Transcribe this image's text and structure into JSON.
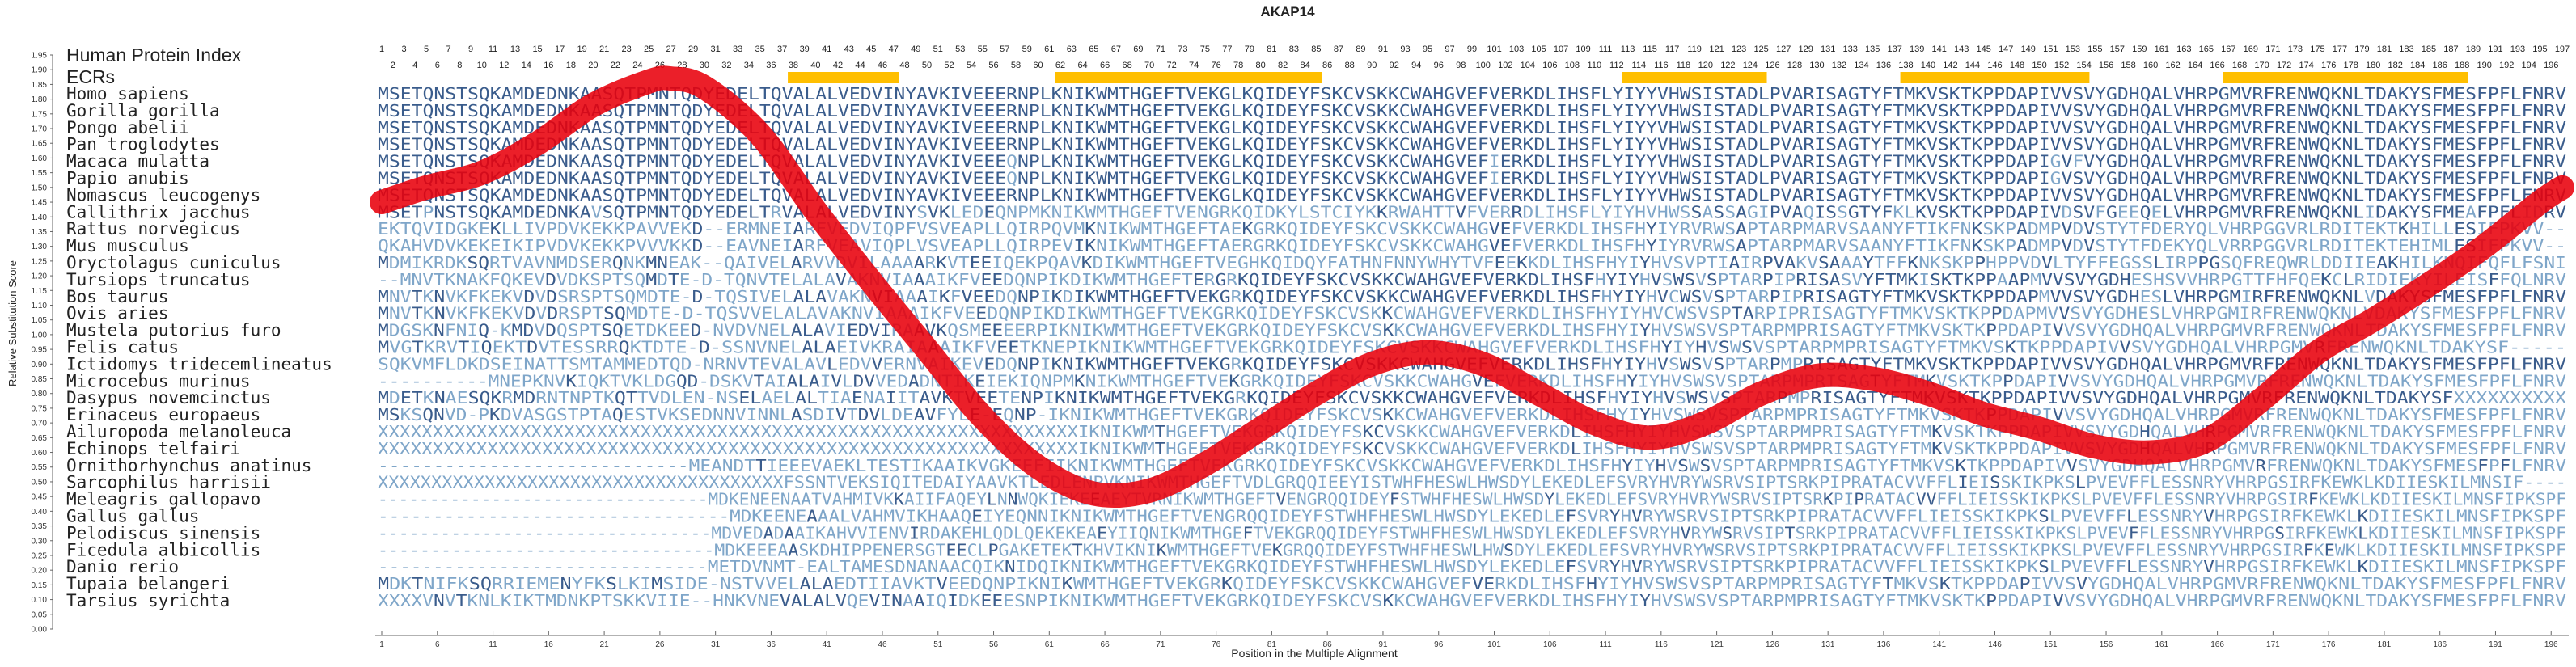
{
  "chart_data": {
    "type": "line",
    "title": "AKAP14",
    "xlabel": "Position in the Multiple Alignment",
    "ylabel": "Relative Substitution Score",
    "xlim": [
      1,
      197
    ],
    "ylim": [
      0,
      1.95
    ],
    "grid": false,
    "row_titles": [
      "Human Protein Index",
      "ECRs"
    ],
    "ecr_ranges": [
      [
        38,
        47
      ],
      [
        62,
        85
      ],
      [
        113,
        125
      ],
      [
        138,
        154
      ],
      [
        167,
        188
      ]
    ],
    "species": [
      "Homo sapiens",
      "Gorilla gorilla",
      "Pongo abelii",
      "Pan troglodytes",
      "Macaca mulatta",
      "Papio anubis",
      "Nomascus leucogenys",
      "Callithrix jacchus",
      "Rattus norvegicus",
      "Mus musculus",
      "Oryctolagus cuniculus",
      "Tursiops truncatus",
      "Bos taurus",
      "Ovis aries",
      "Mustela putorius furo",
      "Felis catus",
      "Ictidomys tridecemlineatus",
      "Microcebus murinus",
      "Dasypus novemcinctus",
      "Erinaceus europaeus",
      "Ailuropoda melanoleuca",
      "Echinops telfairi",
      "Ornithorhynchus anatinus",
      "Sarcophilus harrisii",
      "Meleagris gallopavo",
      "Gallus gallus",
      "Pelodiscus sinensis",
      "Ficedula albicollis",
      "Danio rerio",
      "Tupaia belangeri",
      "Tarsius syrichta"
    ],
    "sequences": [
      "MSETQNSTSQKAMDEDNKAASQTPMNTQDYEDELTQVALALVEDVINYAVKIVEEERNPLKNIKWMTHGEFTVEKGLKQIDEYFSKCVSKKCWAHGVEFVERKDLIHSFLYIYYVHWSISTADLPVARISAGTYFTMKVSKTKPPDAPIVVSVYGDHQALVHRPGMVRFRENWQKNLTDAKYSFMESFPFLFNRV",
      "MSETQNSTSQKAMDEDNKAASQTPMNTQDYEDELTQVALALVEDVINYAVKIVEEERNPLKNIKWMTHGEFTVEKGLKQIDEYFSKCVSKKCWAHGVEFVERKDLIHSFLYIYYVHWSISTADLPVARISAGTYFTMKVSKTKPPDAPIVVSVYGDHQALVHRPGMVRFRENWQKNLTDAKYSFMESFPFLFNRV",
      "MSETQNSTSQKAMDEDNKAASQTPMNTQDYEDELTQVALALVEDVINYAVKIVEEERNPLKNIKWMTHGEFTVEKGLKQIDEYFSKCVSKKCWAHGVEFVERKDLIHSFLYIYYVHWSISTADLPVARISAGTYFTMKVSKTKPPDAPIVVSVYGDHQALVHRPGMVRFRENWQKNLTDAKYSFMESFPFLFNRV",
      "MSETQNSTSQKAMDEDNKAASQTPMNTQDYEDELTQVALALVEDVINYAVKIVEEERNPLKNIKWMTHGEFTVEKGLKQIDEYFSKCVSKKCWAHGVEFVERKDLIHSFLYIYYVHWSISTADLPVARISAGTYFTMKVSKTKPPDAPIVVSVYGDHQALVHRPGMVRFRENWQKNLTDAKYSFMESFPFLFNRV",
      "MSETQNSTSQKAMDEDNKAASQTPMNTQDYEDELTQVALALVEDVINYAVKIVEEEQNPLKNIKWMTHGEFTVEKGLKQIDEYFSKCVSKKCWAHGVEFIERKDLIHSFLYIYYVHWSISTADLPVARISAGTYFTMKVSKTKPPDAPIGVFVYGDHQALVHRPGMVRFRENWQKNLTDAKYSFMESFPFLFNRV",
      "MSETQNSTSQKAMDEDNKAASQTPMNTQDYEDELTQVALALVEDVINYAVKIVEEEQNPLKNIKWMTHGEFTVEKGLKQIDEYFSKCVSKKCWAHGVEFIERKDLIHSFLYIYYVHWSISTADLPVARISAGTYFTMKVSKTKPPDAPIGVSVYGDHQALVHRPGMVRFRENWQKNLTDAKYSFMESFPFLFNRV",
      "MSETQNSTSQKAMDEDNKAASQTPMNTQDYEDELTQVALALVEDVINYAVKIVEEERNPLKNIKWMTHGEFTVEKGLKQIDEYFSKCVSKKCWAHGVEFVERKDLIHSFLYIYYVHWSISTADLPVARISAGTYFTMKVSKTKPPDAPIVVSVYGDHQALVHRPGMVRFRENWQKNLTDAKYSFMESFPFLFNRV",
      "MSETPNSTSQKAMDEDNKAVSQTPMNTQDYEDELTRVALALVEDVINYSVKLEDEQNPMKNIKWMTHGEFTVENGRKQIDKYLSTCIYKKRWAHTTVFVERRDLIHSFLYIYHVHWSSASSAGIPVAQISSGTYFKLKVSKTKPPDAPIVDSVFGEEQELVHRPGMVRFRENWQKNLIDAKYSFMEAFPFLIDRV",
      "EKTQVIDGKEKLLIVPDVKEKKPAVVEKD--ERMNEIARFVEDVIQPFVSVEAPLLQIRPQVMKNIKWMTHGEFTAEKGRKQIDEYFSKCVSKKCWAHGVEFVERKDLIHSFHYIYRVRWSAPTARPMARVSAANYFTIKFNKSKPADMPVDVSTYTFDERYQLVHRPGGVRLRDITEKTKHILLESIFPKVV--",
      "QKAHVDVKEKEIKIPVDVKEKKPVVVKKD--EAVNEIARFVEAVIQPLVSVEAPLLQIRPEVIKNIKWMTHGEFTAERGRKQIDEYFSKCVSKKCWAHGVEFVERKDLIHSFHYIYRVRWSAPTARPMARVSAANYFTIKFNKSKPADMPVDVSTYTFDEKYQLVRRPGGVRLRDITEKTEHIMLESIFPKVV--",
      "MDMIKRDKSQRTVAVNMDSERQNKMNEAK--QAIVELARVVDVILAAAARKVTEEIQEKPQAVKDIKWMTHGEFTVEGHKQIDQYFATHNFNNYWHYTVFEEKKDLIHSFHYIYHVSVPTIAIRPVAKVSAAAYTFFKNKSKPPHPPVDVLTYFFEGSSLIRPPGSQFREQWRLDDIIEAKHILKNQIFQFLFSNI",
      "--MNVTKNAKFQKEVDVDKSPTSQMDTE-D-TQNVTELALAVAKNVIAAAIKFVEEDQNPIKDIKWMTHGEFTERGRKQIDEYFSKCVSKKCWAHGVEFVERKDLIHSFHYIYHVSWSVSPTARPIPRISASVYFTMKISKTKPPAAPMVVSVYGDHESHSVVHRPGTTFHFQEKCLRIDIEKYILEISFFQLNRV",
      "MNVTKNVKFKEKVDVDSRSPTSQMDTE-D-TQSIVELALAVAKNVIAAAIKFVEEDQNPIKDIKWMTHGEFTVEKGRKQIDEYFSKCVSKKCWAHGVEFVERKDLIHSFHYIYHVCWSVSPTARPIPRISAGTYFTMKVSKTKPPDAPMVVSVYGDHESLVHRPGMIRFRENWQKNLVDAKYSFMESFPFLFNRV",
      "MNVTKNVKFKEKVDVDRSPTSQMDTE-D-TQSVVELALAVAKNVIAAAIKFVEEDQNPIKDIKWMTHGEFTVEKGRKQIDEYFSKCVSKKCWAHGVEFVERKDLIHSFHYIYHVCWSVSPTARPIPRISAGTYFTMKVSKTKPPDAPMVVSVYGDHESLVHRPGMIRFRENWQKNLVDAKYSFMESFPFLFNRV",
      "MDGSKNFNIQ-KMDVDQSPTSQETDKEED-NVDVNELALAVIEDVIRAAVKQSMEEEERPIKNIKWMTHGEFTVEKGRKQIDEYFSKCVSKKCWAHGVEFVERKDLIHSFHYIYHVSWSVSPTARPMPRISAGTYFTMKVSKTKPPDAPIVVSVYGDHQALVHRPGMVRFRENWQKNLTDAKYSFMESFPFLFNRV",
      "MVGTKRVTIQEKTDVTESSRRQKTDTE-D-SSNVNELALAEIVKRAIAAAIKFVEETKNEPIKNIKWMTHGEFTVEKGRKQIDEYFSKCVSKKCWAHGVEFVERKDLIHSFHYIYHVSWSVSPTARPMPRISAGTYFTMKVSKTKPPDAPIVVSVYGDHQALVHRPGMVRFRENWQKNLTDAKYSF-----",
      "SQKVMFLDKDSEINATTSMTAMMEDTQD-NRNVTEVALAVLEDVVERNVAIKEVEDQNPIKNIKWMTHGEFTVEKGRKQIDEYFSKCVSKKCWAHGVEFVERKDLIHSFHYIYHVSWSVSPTARPMPRISAGTYFTMKVSKTKPPDAPIVVSVYGDHQALVHRPGMVRFRENWQKNLTDAKYSFMESFPFLFNRV",
      "----------MNEPKNVKIQKTVKLDGQD-DSKVTAIALAIVLDVVEDADNTIKEIEKIQNPMKNIKWMTHGEFTVEKGRKQIDEYFSKCVSKKCWAHGVEFVERKDLIHSFHYIYHVSWSVSPTARPMPRISAGTYFTMKVSKTKPPDAPIVVSVYGDHQALVHRPGMVRFRENWQKNLTDAKYSFMESFPFLFNRV",
      "MDETKNAESQKRMDRNTNPTKQTTVDLEN-NSELAELALTIAENAIITAVKTVEETENPIKNIKWMTHGEFTVEKGRKQIDEYFSKCVSKKCWAHGVEFVERKDLIHSFHYIYHVSWSVSPTARPMPRISAGTYFTMKVSKTKPPDAPIVVSVYGDHQALVHRPGMVRFRENWQKNLTDAKYSFXXXXXXXXXX",
      "MSKSQNVD-PKDVASGSTPTAQESTVKSEDNNVINNLASDIVTDVLDEAVFYLE-EQNP-IKNIKWMTHGEFTVEKGRKQIDEYFSKCVSKKCWAHGVEFVERKDLIHSFHYIYHVSWSVSPTARPMPRISAGTYFTMKVSKTKPPDAPIVVSVYGDHQALVHRPGMVRFRENWQKNLTDAKYSFMESFPFLFNRV",
      "XXXXXXXXXXXXXXXXXXXXXXXXXXXXXXXXXXXXXXXXXXXXXXXXXXXXXXXXXXXXXXXXIKNIKWMTHGEFTVEKGRKQIDEYFSKCVSKKCWAHGVEFVERKDLIHSFHYIYHVSWSVSPTARPMPRISAGTYFTMKVSKTKPPDAPIVVSVYGDHQALVHRPGMVRFRENWQKNLTDAKYSFMESFPFLFNRV",
      "XXXXXXXXXXXXXXXXXXXXXXXXXXXXXXXXXXXXXXXXXXXXXXXXXXXXXXXXXXXXXXXXIKNIKWMTHGEFTVEKGRKQIDEYFSKCVSKKCWAHGVEFVERKDLIHSFHYIYHVSWSVSPTARPMPRISAGTYFTMKVSKTKPPDAPIVVSVYGDHQALVHRPGMVRFRENWQKNLTDAKYSFMESFPFLFNRV",
      "----------------------------MEANDTTIEEEVAEKLTESTIKAAIKVGKEEFIIKNIKWMTHGEFTVEKGRKQIDEYFSKCVSKKCWAHGVEFVERKDLIHSFHYIYHVSWSVSPTARPMPRISAGTYFTMKVSKTKPPDAPIVVSVYGDHQALVHRPGMVRFRENWQKNLTDAKYSFMESFPFLFNRV",
      "XXXXXXXXXXXXXXXXXXXXXXXXXXXXXXXXXXXXXXFSSNTVEKSIQITEDAIYAAVKTLEDLENPVKNIKWMTHGEFTVDLGRQQIEEYISTWHFHESWLHWSDYLEKEDLEFSVRYHVRYWSRVSIPTSRKPIPRATACVVFFLIEISSKIKPKSLPVEVFFLESSNRYVHRPGSIRFKEWKLKDIIESKILMNSIF----",
      "--------------------------------MDKENEENAATVAHMIVKKAIIFAQEYLNNWQKIEKEEAEYTVRNIKWMTHGEFTVENGRQQIDEYFSTWHFHESWLHWSDYLEKEDLEFSVRYHVRYWSRVSIPTSRKPIPRATACVVFFLIEISSKIKPKSLPVEVFFLESSNRYVHRPGSIRFKEWKLKDIIESKILMNSFIPKSPF",
      "--------------------------------MDKEENEAAALVAHMVIKHAAQEIYEQNNIKNIKWMTHGEFTVENGRQQIDEYFSTWHFHESWLHWSDYLEKEDLEFSVRYHVRYWSRVSIPTSRKPIPRATACVVFFLIEISSKIKPKSLPVEVFFLESSNRYVHRPGSIRFKEWKLKDIIESKILMNSFIPKSPF",
      "--------------------------------MDVEDADAAIKAHVVIENVIRDAKEHLQDLQEKEKEAEYIIQNIKWMTHGEFTVEKGRQQIDEYFSTWHFHESWLHWSDYLEKEDLEFSVRYHVRYWSRVSIPTSRKPIPRATACVVFFLIEISSKIKPKSLPVEVFFLESSNRYVHRPGSIRFKEWKLKDIIESKILMNSFIPKSPF",
      "--------------------------------MDKEEEAASKDHIPPENERSGTEECLPGAKETEKTKHVIKNIKWMTHGEFTVEKGRQQIDEYFSTWHFHESWLHWSDYLEKEDLEFSVRYHVRYWSRVSIPTSRKPIPRATACVVFFLIEISSKIKPKSLPVEVFFLESSNRYVHRPGSIRFKEWKLKDIIESKILMNSFIPKSPF",
      "------------------------------METDVNMT-EALTAMESDNANAACQIKNIDQIKNIKWMTHGEFTVEKGRKQIDEYFSTWHFHESWLHWSDYLEKEDLEFSVRYHVRYWSRVSIPTSRKPIPRATACVVFFLIEISSKIKPKSLPVEVFFLESSNRYVHRPGSIRFKEWKLKDIIESKILMNSFIPKSPF",
      "MDKTNIFKSQRRIEMENYFKSLKIMSIDE-NSTVVELALAEDTIIAVKTVEEDQNPIKNIKWMTHGEFTVEKGRKQIDEYFSKCVSKKCWAHGVEFVERKDLIHSFHYIYHVSWSVSPTARPMPRISAGTYFTMKVSKTKPPDAPIVVSVYGDHQALVHRPGMVRFRENWQKNLTDAKYSFMESFPFLFNRV",
      "XXXXVNVTKNLKIKTMDNKPTSKKVIIE--HNKVNEVALALVQEVINAAIQIDKEEESNPIKNIKWMTHGEFTVEKGRKQIDEYFSKCVSKKCWAHGVEFVERKDLIHSFHYIYHVSWSVSPTARPMPRISAGTYFTMKVSKTKPPDAPIVVSVYGDHQALVHRPGMVRFRENWQKNLTDAKYSFMESFPFLFNRV"
    ],
    "human_index_odd": [
      1,
      3,
      5,
      7,
      9,
      11,
      13,
      15,
      17,
      19,
      21,
      23,
      25,
      27,
      29,
      31,
      33,
      35,
      37,
      39,
      41,
      43,
      45,
      47,
      49,
      51,
      53,
      55,
      57,
      59,
      61,
      63,
      65,
      67,
      69,
      71,
      73,
      75,
      77,
      79,
      81,
      83,
      85,
      87,
      89,
      91,
      93,
      95,
      97,
      99,
      101,
      103,
      105,
      107,
      109,
      111,
      113,
      115,
      117,
      119,
      121,
      123,
      125,
      127,
      129,
      131,
      133,
      135,
      137,
      139,
      141,
      143,
      145,
      147,
      149,
      151,
      153,
      155,
      157,
      159,
      161,
      163,
      165,
      167,
      169,
      171,
      173,
      175,
      177,
      179,
      181,
      183,
      185,
      187,
      189,
      191,
      193,
      195,
      197
    ],
    "human_index_even": [
      2,
      4,
      6,
      8,
      10,
      12,
      14,
      16,
      18,
      20,
      22,
      24,
      26,
      28,
      30,
      32,
      34,
      36,
      38,
      40,
      42,
      44,
      46,
      48,
      50,
      52,
      54,
      56,
      58,
      60,
      62,
      64,
      66,
      68,
      70,
      72,
      74,
      76,
      78,
      80,
      82,
      84,
      86,
      88,
      90,
      92,
      94,
      96,
      98,
      100,
      102,
      104,
      106,
      108,
      110,
      112,
      114,
      116,
      118,
      120,
      122,
      124,
      126,
      128,
      130,
      132,
      134,
      136,
      138,
      140,
      142,
      144,
      146,
      148,
      150,
      152,
      154,
      156,
      158,
      160,
      162,
      164,
      166,
      168,
      170,
      172,
      174,
      176,
      178,
      180,
      182,
      184,
      186,
      188,
      190,
      192,
      194,
      196
    ],
    "x_ticks": [
      1,
      6,
      11,
      16,
      21,
      26,
      31,
      36,
      41,
      46,
      51,
      56,
      61,
      66,
      71,
      76,
      81,
      86,
      91,
      96,
      101,
      106,
      111,
      116,
      121,
      126,
      131,
      136,
      141,
      146,
      151,
      156,
      161,
      166,
      171,
      176,
      181,
      186,
      191,
      196
    ],
    "y_ticks": [
      0,
      0.05,
      0.1,
      0.15,
      0.2,
      0.25,
      0.3,
      0.35,
      0.4,
      0.45,
      0.5,
      0.55,
      0.6,
      0.65,
      0.7,
      0.75,
      0.8,
      0.85,
      0.9,
      0.95,
      1,
      1.05,
      1.1,
      1.15,
      1.2,
      1.25,
      1.3,
      1.35,
      1.4,
      1.45,
      1.5,
      1.55,
      1.6,
      1.65,
      1.7,
      1.75,
      1.8,
      1.85,
      1.9,
      1.95
    ],
    "series": [
      {
        "x": [
          1,
          5,
          10,
          15,
          20,
          25,
          27,
          30,
          35,
          40,
          45,
          50,
          55,
          60,
          65,
          70,
          75,
          80,
          85,
          90,
          95,
          100,
          105,
          110,
          115,
          120,
          125,
          130,
          135,
          140,
          145,
          150,
          155,
          160,
          165,
          170,
          175,
          180,
          185,
          190,
          195,
          197
        ],
        "y": [
          1.45,
          1.5,
          1.55,
          1.65,
          1.78,
          1.86,
          1.87,
          1.84,
          1.68,
          1.42,
          1.18,
          0.95,
          0.72,
          0.55,
          0.46,
          0.47,
          0.56,
          0.68,
          0.8,
          0.9,
          0.94,
          0.9,
          0.8,
          0.7,
          0.65,
          0.7,
          0.8,
          0.86,
          0.85,
          0.8,
          0.73,
          0.68,
          0.62,
          0.6,
          0.64,
          0.78,
          0.94,
          1.05,
          1.17,
          1.3,
          1.45,
          1.5
        ]
      }
    ],
    "colors": {
      "curve": "#e8000b",
      "ecr_bar": "#ffbf00",
      "residue_dark": "#3a5c8c",
      "residue_light": "#7fa6c9",
      "text": "#222222"
    }
  }
}
